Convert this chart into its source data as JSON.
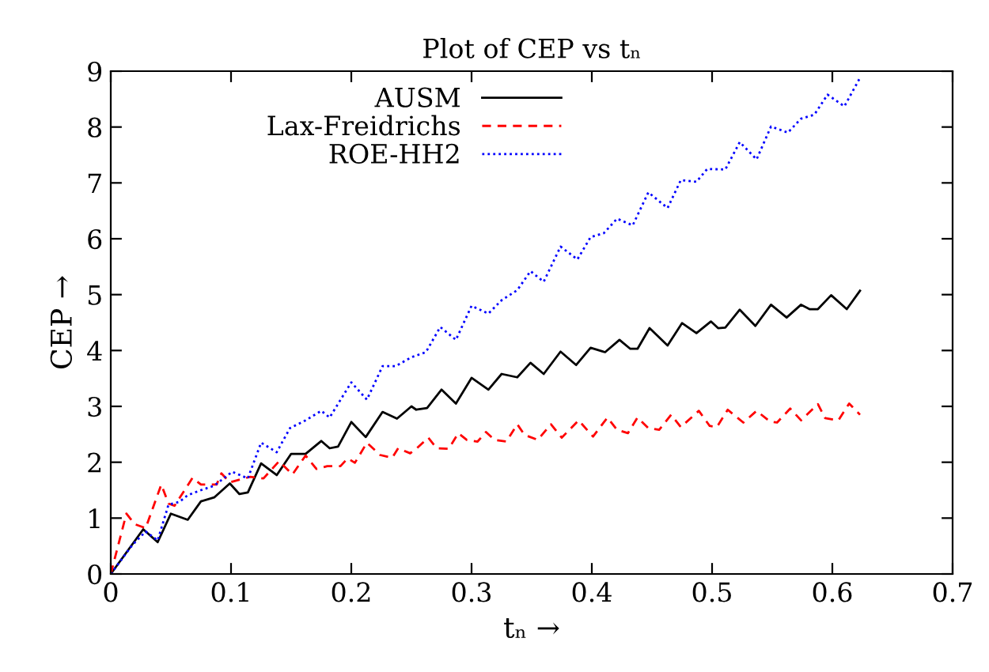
{
  "chart_data": {
    "type": "line",
    "title": "Plot of CEP vs tₙ",
    "xlabel": "tₙ →",
    "ylabel": "CEP →",
    "xlim": [
      0,
      0.7
    ],
    "ylim": [
      0,
      9
    ],
    "xticks": [
      0,
      0.1,
      0.2,
      0.3,
      0.4,
      0.5,
      0.6,
      0.7
    ],
    "yticks": [
      0,
      1,
      2,
      3,
      4,
      5,
      6,
      7,
      8,
      9
    ],
    "grid": false,
    "legend": "top",
    "series": [
      {
        "name": "AUSM",
        "color": "#000000",
        "line_style": "solid",
        "x": [
          0,
          0.027,
          0.039,
          0.05,
          0.064,
          0.075,
          0.086,
          0.099,
          0.107,
          0.114,
          0.125,
          0.138,
          0.15,
          0.162,
          0.175,
          0.182,
          0.189,
          0.2,
          0.212,
          0.226,
          0.238,
          0.25,
          0.254,
          0.263,
          0.275,
          0.287,
          0.3,
          0.314,
          0.325,
          0.338,
          0.349,
          0.36,
          0.374,
          0.387,
          0.399,
          0.411,
          0.423,
          0.432,
          0.438,
          0.448,
          0.463,
          0.475,
          0.487,
          0.499,
          0.505,
          0.511,
          0.523,
          0.536,
          0.549,
          0.562,
          0.574,
          0.581,
          0.588,
          0.599,
          0.612,
          0.623
        ],
        "values": [
          0,
          0.8,
          0.57,
          1.08,
          0.97,
          1.3,
          1.37,
          1.62,
          1.43,
          1.46,
          1.98,
          1.77,
          2.15,
          2.15,
          2.38,
          2.25,
          2.28,
          2.72,
          2.45,
          2.9,
          2.78,
          3.0,
          2.94,
          2.97,
          3.3,
          3.05,
          3.51,
          3.3,
          3.58,
          3.52,
          3.78,
          3.58,
          3.98,
          3.74,
          4.05,
          3.97,
          4.19,
          4.03,
          4.03,
          4.4,
          4.09,
          4.49,
          4.31,
          4.52,
          4.4,
          4.41,
          4.73,
          4.44,
          4.82,
          4.59,
          4.82,
          4.74,
          4.74,
          4.99,
          4.74,
          5.07
        ]
      },
      {
        "name": "Lax-Freidrichs",
        "color": "#ff0000",
        "line_style": "dashed",
        "x": [
          0,
          0.013,
          0.02,
          0.029,
          0.042,
          0.048,
          0.053,
          0.068,
          0.075,
          0.088,
          0.092,
          0.099,
          0.116,
          0.127,
          0.14,
          0.151,
          0.162,
          0.171,
          0.18,
          0.191,
          0.197,
          0.203,
          0.213,
          0.224,
          0.234,
          0.239,
          0.249,
          0.254,
          0.264,
          0.271,
          0.281,
          0.289,
          0.296,
          0.305,
          0.312,
          0.319,
          0.329,
          0.338,
          0.344,
          0.355,
          0.366,
          0.375,
          0.389,
          0.401,
          0.413,
          0.421,
          0.43,
          0.438,
          0.447,
          0.456,
          0.466,
          0.474,
          0.489,
          0.498,
          0.504,
          0.513,
          0.526,
          0.537,
          0.548,
          0.554,
          0.565,
          0.574,
          0.588,
          0.594,
          0.605,
          0.614,
          0.623
        ],
        "values": [
          0,
          1.08,
          0.89,
          0.82,
          1.6,
          1.26,
          1.22,
          1.72,
          1.6,
          1.6,
          1.8,
          1.64,
          1.74,
          1.71,
          2.02,
          1.78,
          2.12,
          1.88,
          1.93,
          1.93,
          2.07,
          1.99,
          2.35,
          2.13,
          2.08,
          2.25,
          2.16,
          2.24,
          2.44,
          2.25,
          2.24,
          2.52,
          2.4,
          2.37,
          2.54,
          2.4,
          2.37,
          2.68,
          2.49,
          2.4,
          2.68,
          2.44,
          2.75,
          2.46,
          2.8,
          2.58,
          2.52,
          2.8,
          2.61,
          2.58,
          2.85,
          2.63,
          2.92,
          2.65,
          2.63,
          2.94,
          2.71,
          2.92,
          2.73,
          2.71,
          2.96,
          2.75,
          3.04,
          2.79,
          2.75,
          3.05,
          2.85
        ]
      },
      {
        "name": "ROE-HH2",
        "color": "#0000ff",
        "line_style": "dotted",
        "x": [
          0,
          0.018,
          0.029,
          0.039,
          0.048,
          0.057,
          0.064,
          0.075,
          0.086,
          0.101,
          0.114,
          0.125,
          0.138,
          0.149,
          0.162,
          0.175,
          0.182,
          0.2,
          0.213,
          0.226,
          0.237,
          0.25,
          0.262,
          0.274,
          0.287,
          0.3,
          0.314,
          0.325,
          0.338,
          0.349,
          0.36,
          0.374,
          0.388,
          0.399,
          0.41,
          0.421,
          0.434,
          0.447,
          0.463,
          0.474,
          0.487,
          0.496,
          0.511,
          0.523,
          0.537,
          0.549,
          0.563,
          0.574,
          0.585,
          0.596,
          0.61,
          0.623
        ],
        "values": [
          0,
          0.52,
          0.76,
          0.6,
          1.24,
          1.29,
          1.41,
          1.5,
          1.58,
          1.83,
          1.71,
          2.35,
          2.18,
          2.61,
          2.75,
          2.92,
          2.8,
          3.43,
          3.12,
          3.72,
          3.72,
          3.88,
          3.97,
          4.42,
          4.19,
          4.8,
          4.66,
          4.9,
          5.08,
          5.42,
          5.23,
          5.86,
          5.63,
          6.03,
          6.1,
          6.36,
          6.24,
          6.83,
          6.55,
          7.05,
          7.02,
          7.25,
          7.24,
          7.73,
          7.42,
          8.01,
          7.9,
          8.15,
          8.22,
          8.58,
          8.37,
          8.88
        ]
      }
    ]
  }
}
